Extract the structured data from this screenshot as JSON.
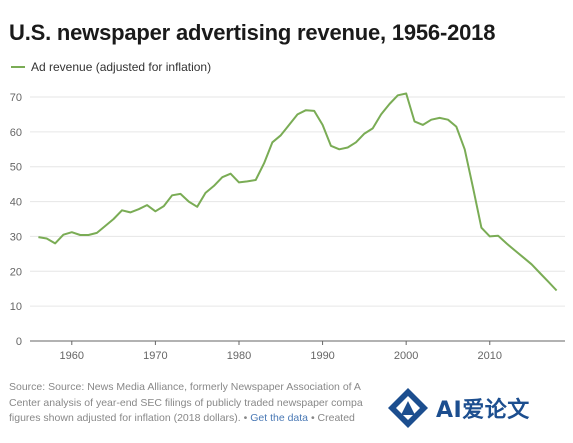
{
  "chart_data": {
    "type": "line",
    "title": "U.S. newspaper advertising revenue, 1956-2018",
    "legend_position": "top-left",
    "grid": true,
    "xlim": [
      1955,
      2019
    ],
    "ylim": [
      0,
      70
    ],
    "x_ticks": [
      "1960",
      "1970",
      "1980",
      "1990",
      "2000",
      "2010"
    ],
    "y_ticks": [
      "0",
      "10",
      "20",
      "30",
      "40",
      "50",
      "60",
      "70"
    ],
    "series": [
      {
        "name": "Ad revenue (adjusted for inflation)",
        "color": "#7aac55",
        "x": [
          1956,
          1957,
          1958,
          1959,
          1960,
          1961,
          1962,
          1963,
          1964,
          1965,
          1966,
          1967,
          1968,
          1969,
          1970,
          1971,
          1972,
          1973,
          1974,
          1975,
          1976,
          1977,
          1978,
          1979,
          1980,
          1981,
          1982,
          1983,
          1984,
          1985,
          1986,
          1987,
          1988,
          1989,
          1990,
          1991,
          1992,
          1993,
          1994,
          1995,
          1996,
          1997,
          1998,
          1999,
          2000,
          2001,
          2002,
          2003,
          2004,
          2005,
          2006,
          2007,
          2008,
          2009,
          2010,
          2011,
          2012,
          2013,
          2014,
          2015,
          2016,
          2017,
          2018
        ],
        "y": [
          29.8,
          29.4,
          28.0,
          30.5,
          31.2,
          30.4,
          30.4,
          31.0,
          33.0,
          35.0,
          37.5,
          36.9,
          37.8,
          39.0,
          37.2,
          38.7,
          41.8,
          42.2,
          40.0,
          38.5,
          42.5,
          44.5,
          47.0,
          48.0,
          45.5,
          45.8,
          46.2,
          51.0,
          57.0,
          59.0,
          62.0,
          65.0,
          66.2,
          66.0,
          62.0,
          56.0,
          55.0,
          55.5,
          57.0,
          59.5,
          61.0,
          65.0,
          68.0,
          70.5,
          71.0,
          63.0,
          62.0,
          63.5,
          64.0,
          63.5,
          61.5,
          55.0,
          44.0,
          32.5,
          30.0,
          30.2,
          28.0,
          26.0,
          24.0,
          22.0,
          19.5,
          17.0,
          14.5
        ]
      }
    ]
  },
  "legend": {
    "label": "Ad revenue (adjusted for inflation)"
  },
  "footer": {
    "line1": "Source: Source: News Media Alliance, formerly Newspaper Association of A",
    "line2": "Center analysis of year-end SEC filings of publicly traded newspaper compa",
    "line3_pre": "figures shown adjusted for inflation (2018 dollars). • ",
    "line3_link": "Get the data",
    "line3_post": " • Created"
  },
  "watermark": {
    "text": "AI爱论文"
  }
}
